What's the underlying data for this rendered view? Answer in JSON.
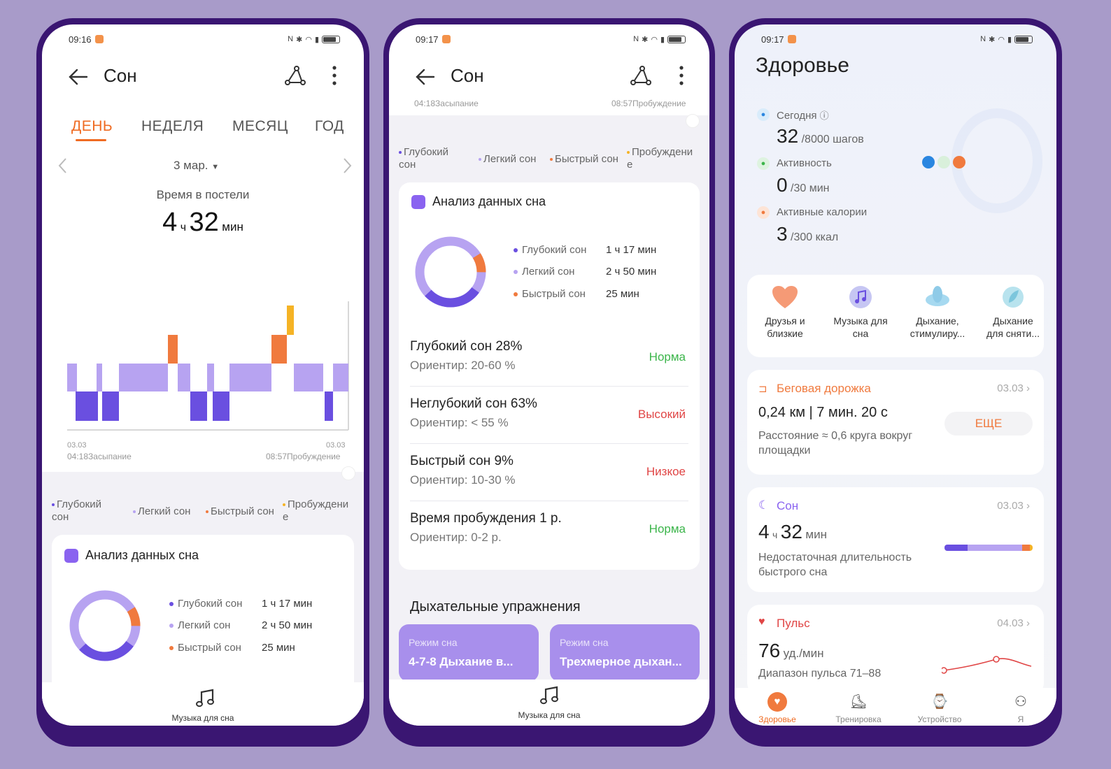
{
  "status": {
    "time1": "09:16",
    "time2": "09:17",
    "time3": "09:17"
  },
  "sleep": {
    "title": "Сон",
    "tabs": [
      "ДЕНЬ",
      "НЕДЕЛЯ",
      "МЕСЯЦ",
      "ГОД"
    ],
    "date": "3 мар.",
    "bed_label": "Время в постели",
    "bed_hours": "4",
    "bed_h_unit": "ч",
    "bed_minutes": "32",
    "bed_m_unit": "мин",
    "start_date": "03.03",
    "start_label": "04:18Засыпание",
    "end_date": "03.03",
    "end_label": "08:57Пробуждение",
    "legend": {
      "deep": "Глубокий сон",
      "light": "Легкий сон",
      "rem": "Быстрый сон",
      "wake": "Пробуждение"
    },
    "analysis_title": "Анализ данных сна",
    "analysis": [
      {
        "name": "Глубокий сон",
        "value": "1 ч 17 мин",
        "color": "#6a4fe0"
      },
      {
        "name": "Легкий сон",
        "value": "2 ч 50 мин",
        "color": "#b7a3f1"
      },
      {
        "name": "Быстрый сон",
        "value": "25 мин",
        "color": "#f07a3e"
      }
    ],
    "metrics": [
      {
        "title": "Глубокий сон 28%",
        "sub": "Ориентир: 20-60 %",
        "badge": "Норма",
        "color": "#3bb54a"
      },
      {
        "title": "Неглубокий сон 63%",
        "sub": "Ориентир: < 55 %",
        "badge": "Высокий",
        "color": "#e04545"
      },
      {
        "title": "Быстрый сон 9%",
        "sub": "Ориентир: 10-30 %",
        "badge": "Низкое",
        "color": "#e04545"
      },
      {
        "title": "Время пробуждения 1 р.",
        "sub": "Ориентир: 0-2 р.",
        "badge": "Норма",
        "color": "#3bb54a"
      }
    ],
    "breath_title": "Дыхательные упражнения",
    "breath_cards": [
      {
        "mode": "Режим сна",
        "name": "4-7-8 Дыхание в..."
      },
      {
        "mode": "Режим сна",
        "name": "Трехмерное дыхан..."
      }
    ],
    "music_label": "Музыка для сна"
  },
  "health": {
    "title": "Здоровье",
    "today_label": "Сегодня",
    "steps_value": "32",
    "steps_goal": "/8000 шагов",
    "activity_label": "Активность",
    "activity_value": "0",
    "activity_goal": "/30 мин",
    "calories_label": "Активные калории",
    "calories_value": "3",
    "calories_goal": "/300 ккал",
    "shortcuts": [
      {
        "l1": "Друзья и",
        "l2": "близкие",
        "icon": "heart-icon"
      },
      {
        "l1": "Музыка для",
        "l2": "сна",
        "icon": "music-icon"
      },
      {
        "l1": "Дыхание,",
        "l2": "стимулиру...",
        "icon": "lotus-icon"
      },
      {
        "l1": "Дыхание",
        "l2": "для сняти...",
        "icon": "leaf-icon"
      }
    ],
    "treadmill": {
      "title": "Беговая дорожка",
      "date": "03.03",
      "value": "0,24 км | 7 мин. 20 с",
      "desc1": "Расстояние ≈ 0,6 круга вокруг",
      "desc2": "площадки",
      "more": "ЕЩЕ"
    },
    "sleep_card": {
      "title": "Сон",
      "date": "03.03",
      "hours": "4",
      "h_unit": "ч",
      "minutes": "32",
      "m_unit": "мин",
      "desc1": "Недостаточная длительность",
      "desc2": "быстрого сна"
    },
    "pulse": {
      "title": "Пульс",
      "date": "04.03",
      "value": "76",
      "unit": "уд./мин",
      "range": "Диапазон пульса 71–88"
    },
    "nav": [
      "Здоровье",
      "Тренировка",
      "Устройство",
      "Я"
    ]
  }
}
